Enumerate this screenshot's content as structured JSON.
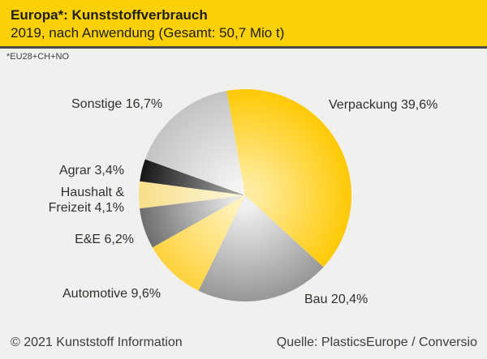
{
  "header": {
    "title": "Europa*: Kunststoffverbrauch",
    "subtitle": "2019, nach Anwendung (Gesamt: 50,7 Mio t)",
    "background_color": "#FBD105"
  },
  "footnote": "*EU28+CH+NO",
  "footer": {
    "left": "© 2021 Kunststoff Information",
    "right": "Quelle: PlasticsEurope / Conversio"
  },
  "chart_data": {
    "type": "pie",
    "title": "Europa*: Kunststoffverbrauch 2019, nach Anwendung",
    "total": "50,7 Mio t",
    "unit": "%",
    "start_angle_deg": -10,
    "legend_position": "labels-around-pie",
    "slices": [
      {
        "label": "Verpackung",
        "value": 39.6,
        "display": "Verpackung 39,6%",
        "color_center": "#FFEC9E",
        "color_edge": "#FFC905"
      },
      {
        "label": "Bau",
        "value": 20.4,
        "display": "Bau 20,4%",
        "color_center": "#F0F0F0",
        "color_edge": "#979797"
      },
      {
        "label": "Automotive",
        "value": 9.6,
        "display": "Automotive 9,6%",
        "color_center": "#FFF3BE",
        "color_edge": "#FFD23C"
      },
      {
        "label": "E&E",
        "value": 6.2,
        "display": "E&E 6,2%",
        "color_center": "#E8E8E8",
        "color_edge": "#6E6E6E"
      },
      {
        "label": "Haushalt & Freizeit",
        "value": 4.1,
        "display": "Haushalt &\nFreizeit 4,1%",
        "color_center": "#FDF5D4",
        "color_edge": "#F7DF8A"
      },
      {
        "label": "Agrar",
        "value": 3.4,
        "display": "Agrar 3,4%",
        "color_center": "#9B9B9B",
        "color_edge": "#161616"
      },
      {
        "label": "Sonstige",
        "value": 16.7,
        "display": "Sonstige 16,7%",
        "color_center": "#F4F4F3",
        "color_edge": "#C3C3C3"
      }
    ]
  }
}
